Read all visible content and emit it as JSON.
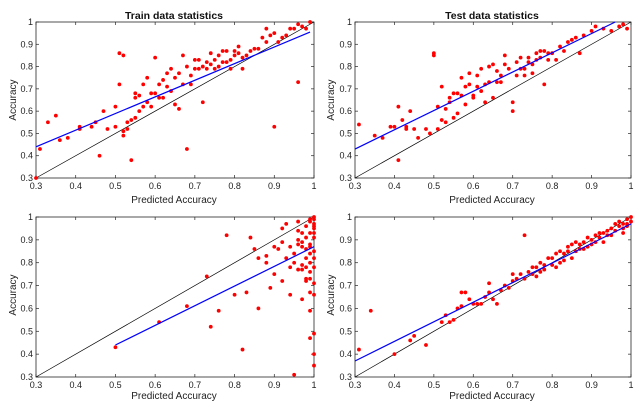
{
  "figure": {
    "background": "#ffffff",
    "panel_titles": [
      "Train data statistics",
      "Test data statistics",
      "",
      ""
    ]
  },
  "chart_data": [
    {
      "type": "scatter",
      "title": "Train data statistics",
      "xlabel": "Predicted Accuracy",
      "ylabel": "Accuracy",
      "xlim": [
        0.3,
        1
      ],
      "ylim": [
        0.3,
        1
      ],
      "xticks": [
        "0.3",
        "0.4",
        "0.5",
        "0.6",
        "0.7",
        "0.8",
        "0.9",
        "1"
      ],
      "yticks": [
        "0.3",
        "0.4",
        "0.5",
        "0.6",
        "0.7",
        "0.8",
        "0.9",
        "1"
      ],
      "grid": false,
      "colors": {
        "points": "#ff0000",
        "fit": "#0000ff",
        "identity": "#000000"
      },
      "identity_line": [
        [
          0.3,
          0.3
        ],
        [
          1,
          1
        ]
      ],
      "fit_line": [
        [
          0.3,
          0.44
        ],
        [
          0.99,
          0.955
        ]
      ],
      "series": [
        {
          "x": [
            0.3,
            0.31,
            0.33,
            0.35,
            0.36,
            0.38,
            0.41,
            0.41,
            0.44,
            0.45,
            0.46,
            0.47,
            0.48,
            0.5,
            0.5,
            0.51,
            0.51,
            0.52,
            0.52,
            0.52,
            0.53,
            0.53,
            0.54,
            0.54,
            0.55,
            0.55,
            0.55,
            0.56,
            0.56,
            0.57,
            0.57,
            0.58,
            0.58,
            0.59,
            0.59,
            0.6,
            0.6,
            0.61,
            0.61,
            0.62,
            0.62,
            0.63,
            0.63,
            0.64,
            0.64,
            0.65,
            0.65,
            0.66,
            0.66,
            0.67,
            0.67,
            0.68,
            0.68,
            0.69,
            0.69,
            0.7,
            0.7,
            0.71,
            0.71,
            0.72,
            0.72,
            0.73,
            0.73,
            0.74,
            0.74,
            0.75,
            0.75,
            0.76,
            0.76,
            0.77,
            0.77,
            0.78,
            0.78,
            0.79,
            0.79,
            0.8,
            0.8,
            0.81,
            0.81,
            0.82,
            0.82,
            0.83,
            0.84,
            0.85,
            0.86,
            0.87,
            0.88,
            0.89,
            0.9,
            0.9,
            0.91,
            0.92,
            0.93,
            0.94,
            0.95,
            0.96,
            0.97,
            0.98,
            0.99,
            0.88,
            0.96
          ],
          "y": [
            0.3,
            0.43,
            0.55,
            0.58,
            0.47,
            0.48,
            0.53,
            0.52,
            0.53,
            0.55,
            0.4,
            0.6,
            0.52,
            0.53,
            0.62,
            0.72,
            0.86,
            0.85,
            0.51,
            0.49,
            0.55,
            0.52,
            0.38,
            0.56,
            0.57,
            0.66,
            0.68,
            0.67,
            0.6,
            0.62,
            0.72,
            0.64,
            0.75,
            0.62,
            0.68,
            0.68,
            0.84,
            0.66,
            0.72,
            0.74,
            0.66,
            0.77,
            0.71,
            0.79,
            0.69,
            0.63,
            0.75,
            0.61,
            0.77,
            0.72,
            0.85,
            0.43,
            0.8,
            0.72,
            0.76,
            0.79,
            0.83,
            0.79,
            0.83,
            0.8,
            0.64,
            0.79,
            0.82,
            0.81,
            0.86,
            0.79,
            0.83,
            0.85,
            0.8,
            0.87,
            0.82,
            0.82,
            0.87,
            0.83,
            0.79,
            0.87,
            0.85,
            0.89,
            0.86,
            0.79,
            0.84,
            0.85,
            0.87,
            0.88,
            0.88,
            0.93,
            0.91,
            0.94,
            0.95,
            0.53,
            0.91,
            0.93,
            0.94,
            0.97,
            0.97,
            0.73,
            0.98,
            0.97,
            1.0,
            0.97,
            0.99
          ]
        }
      ]
    },
    {
      "type": "scatter",
      "title": "Test data statistics",
      "xlabel": "Predicted Accuracy",
      "ylabel": "Accuracy",
      "xlim": [
        0.3,
        1
      ],
      "ylim": [
        0.3,
        1
      ],
      "xticks": [
        "0.3",
        "0.4",
        "0.5",
        "0.6",
        "0.7",
        "0.8",
        "0.9",
        "1"
      ],
      "yticks": [
        "0.3",
        "0.4",
        "0.5",
        "0.6",
        "0.7",
        "0.8",
        "0.9",
        "1"
      ],
      "grid": false,
      "colors": {
        "points": "#ff0000",
        "fit": "#0000ff",
        "identity": "#000000"
      },
      "identity_line": [
        [
          0.3,
          0.3
        ],
        [
          1,
          1
        ]
      ],
      "fit_line": [
        [
          0.3,
          0.43
        ],
        [
          0.96,
          1.0
        ]
      ],
      "series": [
        {
          "x": [
            0.31,
            0.35,
            0.37,
            0.39,
            0.4,
            0.41,
            0.41,
            0.42,
            0.43,
            0.43,
            0.44,
            0.45,
            0.46,
            0.48,
            0.49,
            0.5,
            0.5,
            0.51,
            0.51,
            0.52,
            0.52,
            0.53,
            0.53,
            0.54,
            0.54,
            0.55,
            0.55,
            0.56,
            0.56,
            0.57,
            0.57,
            0.58,
            0.58,
            0.59,
            0.59,
            0.6,
            0.6,
            0.61,
            0.61,
            0.62,
            0.62,
            0.63,
            0.63,
            0.64,
            0.64,
            0.65,
            0.65,
            0.66,
            0.66,
            0.67,
            0.67,
            0.68,
            0.68,
            0.69,
            0.7,
            0.7,
            0.71,
            0.71,
            0.72,
            0.72,
            0.73,
            0.73,
            0.74,
            0.74,
            0.75,
            0.75,
            0.76,
            0.76,
            0.77,
            0.77,
            0.78,
            0.78,
            0.79,
            0.79,
            0.8,
            0.81,
            0.82,
            0.83,
            0.84,
            0.85,
            0.86,
            0.87,
            0.88,
            0.9,
            0.91,
            0.93,
            0.95,
            0.97,
            0.98,
            0.99
          ],
          "y": [
            0.54,
            0.49,
            0.48,
            0.53,
            0.53,
            0.62,
            0.38,
            0.56,
            0.52,
            0.53,
            0.6,
            0.52,
            0.48,
            0.52,
            0.5,
            0.86,
            0.85,
            0.52,
            0.62,
            0.71,
            0.56,
            0.55,
            0.61,
            0.64,
            0.66,
            0.57,
            0.68,
            0.68,
            0.59,
            0.67,
            0.75,
            0.71,
            0.63,
            0.72,
            0.77,
            0.66,
            0.67,
            0.76,
            0.71,
            0.69,
            0.79,
            0.64,
            0.72,
            0.8,
            0.73,
            0.81,
            0.66,
            0.78,
            0.73,
            0.73,
            0.76,
            0.85,
            0.81,
            0.79,
            0.6,
            0.64,
            0.76,
            0.82,
            0.79,
            0.84,
            0.76,
            0.79,
            0.82,
            0.84,
            0.77,
            0.81,
            0.86,
            0.83,
            0.87,
            0.84,
            0.72,
            0.87,
            0.83,
            0.86,
            0.86,
            0.83,
            0.89,
            0.87,
            0.91,
            0.92,
            0.93,
            0.86,
            0.94,
            0.96,
            0.98,
            0.97,
            0.96,
            0.98,
            0.99,
            0.97
          ]
        }
      ]
    },
    {
      "type": "scatter",
      "title": "",
      "xlabel": "Predicted Accuracy",
      "ylabel": "Accuracy",
      "xlim": [
        0.3,
        1
      ],
      "ylim": [
        0.3,
        1
      ],
      "xticks": [
        "0.3",
        "0.4",
        "0.5",
        "0.6",
        "0.7",
        "0.8",
        "0.9",
        "1"
      ],
      "yticks": [
        "0.3",
        "0.4",
        "0.5",
        "0.6",
        "0.7",
        "0.8",
        "0.9",
        "1"
      ],
      "grid": false,
      "colors": {
        "points": "#ff0000",
        "fit": "#0000ff",
        "identity": "#000000"
      },
      "identity_line": [
        [
          0.3,
          0.3
        ],
        [
          1,
          1
        ]
      ],
      "fit_line": [
        [
          0.5,
          0.44
        ],
        [
          1,
          0.87
        ]
      ],
      "series": [
        {
          "x": [
            0.5,
            0.61,
            0.68,
            0.73,
            0.74,
            0.76,
            0.78,
            0.8,
            0.82,
            0.83,
            0.85,
            0.86,
            0.88,
            0.89,
            0.9,
            0.91,
            0.92,
            0.92,
            0.93,
            0.94,
            0.94,
            0.95,
            0.95,
            0.96,
            0.96,
            0.96,
            0.97,
            0.97,
            0.97,
            0.97,
            0.98,
            0.98,
            0.98,
            0.98,
            0.98,
            0.99,
            0.99,
            0.99,
            0.99,
            0.99,
            0.99,
            0.99,
            1.0,
            1.0,
            1.0,
            1.0,
            1.0,
            1.0,
            1.0,
            1.0,
            1.0,
            1.0,
            1.0,
            1.0,
            1.0,
            0.97,
            0.95,
            0.96,
            0.93,
            0.9,
            0.88,
            0.86,
            0.84,
            0.99,
            0.98,
            0.97,
            0.99,
            1.0,
            0.99,
            0.98,
            1.0,
            0.99,
            0.96,
            0.94,
            0.92,
            0.99
          ],
          "y": [
            0.43,
            0.54,
            0.61,
            0.74,
            0.52,
            0.59,
            0.92,
            0.66,
            0.42,
            0.67,
            0.86,
            0.6,
            0.8,
            0.69,
            0.75,
            0.86,
            0.95,
            0.72,
            0.82,
            0.87,
            0.66,
            0.84,
            0.31,
            0.98,
            0.9,
            0.77,
            0.87,
            0.93,
            0.79,
            0.64,
            0.78,
            0.82,
            0.96,
            0.72,
            0.86,
            0.47,
            0.93,
            0.99,
            0.76,
            0.87,
            0.59,
            0.88,
            0.97,
            1.0,
            0.99,
            0.96,
            0.95,
            0.93,
            0.91,
            0.85,
            0.82,
            0.71,
            0.49,
            0.4,
            0.35,
            0.89,
            0.8,
            0.94,
            0.97,
            0.87,
            0.83,
            0.82,
            0.91,
            0.67,
            0.73,
            0.77,
            0.84,
            0.66,
            0.98,
            0.91,
            0.78,
            0.8,
            0.88,
            0.78,
            0.89,
            0.73
          ]
        }
      ]
    },
    {
      "type": "scatter",
      "title": "",
      "xlabel": "Predicted Accuracy",
      "ylabel": "Accuracy",
      "xlim": [
        0.3,
        1
      ],
      "ylim": [
        0.3,
        1
      ],
      "xticks": [
        "0.3",
        "0.4",
        "0.5",
        "0.6",
        "0.7",
        "0.8",
        "0.9",
        "1"
      ],
      "yticks": [
        "0.3",
        "0.4",
        "0.5",
        "0.6",
        "0.7",
        "0.8",
        "0.9",
        "1"
      ],
      "grid": false,
      "colors": {
        "points": "#ff0000",
        "fit": "#0000ff",
        "identity": "#000000"
      },
      "identity_line": [
        [
          0.3,
          0.3
        ],
        [
          1,
          1
        ]
      ],
      "fit_line": [
        [
          0.3,
          0.37
        ],
        [
          1,
          0.97
        ]
      ],
      "series": [
        {
          "x": [
            0.31,
            0.34,
            0.4,
            0.44,
            0.45,
            0.48,
            0.52,
            0.53,
            0.54,
            0.55,
            0.56,
            0.57,
            0.57,
            0.58,
            0.59,
            0.6,
            0.61,
            0.62,
            0.63,
            0.64,
            0.64,
            0.65,
            0.66,
            0.67,
            0.68,
            0.69,
            0.7,
            0.7,
            0.71,
            0.72,
            0.73,
            0.73,
            0.74,
            0.75,
            0.75,
            0.76,
            0.76,
            0.77,
            0.77,
            0.78,
            0.78,
            0.79,
            0.8,
            0.8,
            0.81,
            0.81,
            0.82,
            0.82,
            0.83,
            0.83,
            0.84,
            0.84,
            0.85,
            0.85,
            0.86,
            0.86,
            0.87,
            0.87,
            0.88,
            0.88,
            0.89,
            0.89,
            0.9,
            0.9,
            0.91,
            0.91,
            0.92,
            0.92,
            0.93,
            0.93,
            0.94,
            0.94,
            0.95,
            0.95,
            0.96,
            0.96,
            0.97,
            0.97,
            0.98,
            0.98,
            0.99,
            0.99,
            1.0,
            1.0,
            0.99,
            0.98
          ],
          "y": [
            0.42,
            0.59,
            0.4,
            0.46,
            0.48,
            0.44,
            0.54,
            0.57,
            0.54,
            0.55,
            0.6,
            0.61,
            0.67,
            0.67,
            0.64,
            0.62,
            0.62,
            0.62,
            0.65,
            0.67,
            0.71,
            0.64,
            0.62,
            0.68,
            0.7,
            0.69,
            0.72,
            0.75,
            0.73,
            0.75,
            0.73,
            0.92,
            0.76,
            0.75,
            0.78,
            0.78,
            0.74,
            0.8,
            0.76,
            0.79,
            0.77,
            0.82,
            0.82,
            0.79,
            0.78,
            0.84,
            0.8,
            0.85,
            0.84,
            0.81,
            0.85,
            0.87,
            0.82,
            0.88,
            0.85,
            0.89,
            0.86,
            0.88,
            0.89,
            0.86,
            0.87,
            0.91,
            0.9,
            0.88,
            0.92,
            0.89,
            0.91,
            0.93,
            0.93,
            0.89,
            0.92,
            0.94,
            0.92,
            0.95,
            0.94,
            0.97,
            0.96,
            0.98,
            0.95,
            0.97,
            0.97,
            0.99,
            0.98,
            1.0,
            0.96,
            0.93
          ]
        }
      ]
    }
  ]
}
